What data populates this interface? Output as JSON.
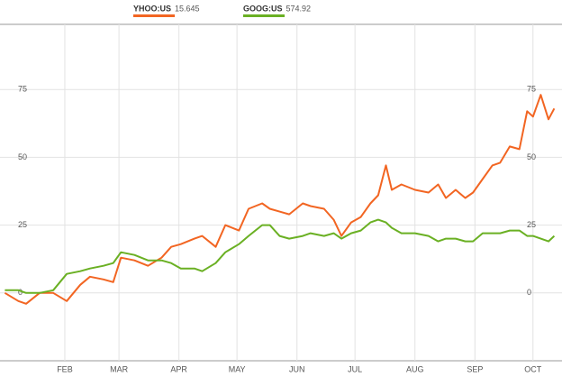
{
  "chart_data": {
    "type": "line",
    "x": [
      0,
      7,
      11,
      18,
      25,
      32,
      39,
      44,
      51,
      56,
      60,
      67,
      74,
      81,
      86,
      91,
      98,
      102,
      109,
      114,
      121,
      126,
      133,
      137,
      142,
      147,
      154,
      158,
      165,
      170,
      174,
      179,
      184,
      189,
      193,
      197,
      200,
      205,
      212,
      219,
      224,
      228,
      233,
      238,
      242,
      247,
      252,
      256,
      261,
      266,
      270,
      273,
      277,
      281,
      284
    ],
    "series": [
      {
        "name": "YHOO:US",
        "last_price": 15.645,
        "color": "#f26522",
        "values": [
          0,
          -3,
          -4,
          0,
          0,
          -3,
          3,
          6,
          5,
          4,
          13,
          12,
          10,
          13,
          17,
          18,
          20,
          21,
          17,
          25,
          23,
          31,
          33,
          31,
          30,
          29,
          33,
          32,
          31,
          27,
          21,
          26,
          28,
          33,
          36,
          47,
          38,
          40,
          38,
          37,
          40,
          35,
          38,
          35,
          37,
          42,
          47,
          48,
          54,
          53,
          67,
          65,
          73,
          64,
          68
        ]
      },
      {
        "name": "GOOG:US",
        "last_price": 574.92,
        "color": "#6ab023",
        "values": [
          1,
          1,
          0,
          0,
          1,
          7,
          8,
          9,
          10,
          11,
          15,
          14,
          12,
          12,
          11,
          9,
          9,
          8,
          11,
          15,
          18,
          21,
          25,
          25,
          21,
          20,
          21,
          22,
          21,
          22,
          20,
          22,
          23,
          26,
          27,
          26,
          24,
          22,
          22,
          21,
          19,
          20,
          20,
          19,
          19,
          22,
          22,
          22,
          23,
          23,
          21,
          21,
          20,
          19,
          21
        ]
      }
    ],
    "xlim": [
      -2.5,
      288
    ],
    "xticks": [
      {
        "value": 31,
        "label": "FEB"
      },
      {
        "value": 59,
        "label": "MAR"
      },
      {
        "value": 90,
        "label": "APR"
      },
      {
        "value": 120,
        "label": "MAY"
      },
      {
        "value": 151,
        "label": "JUN"
      },
      {
        "value": 181,
        "label": "JUL"
      },
      {
        "value": 212,
        "label": "AUG"
      },
      {
        "value": 243,
        "label": "SEP"
      },
      {
        "value": 273,
        "label": "OCT"
      }
    ],
    "ylim": [
      -25,
      99
    ],
    "yticks": [
      0,
      25,
      50,
      75
    ],
    "grid": true
  }
}
